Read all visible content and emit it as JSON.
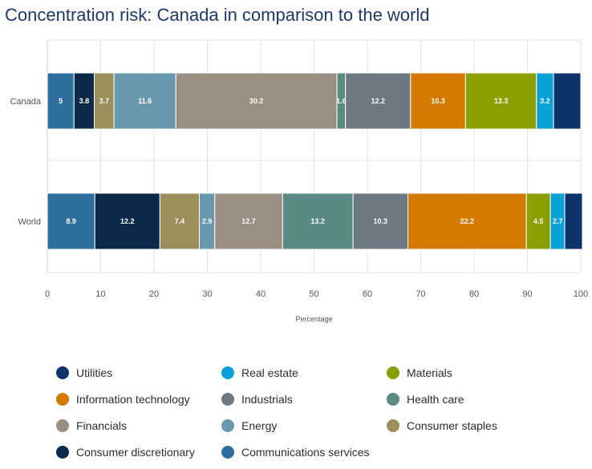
{
  "title": "Concentration risk: Canada in comparison to the world",
  "chart_data": {
    "type": "bar",
    "orientation": "horizontal",
    "stacked": true,
    "title": "Concentration risk: Canada in comparison to the world",
    "xlabel": "Percentage",
    "ylabel": "",
    "xlim": [
      0,
      100
    ],
    "xticks": [
      "0",
      "10",
      "20",
      "30",
      "40",
      "50",
      "60",
      "70",
      "80",
      "90",
      "100"
    ],
    "grid": true,
    "legend_position": "bottom",
    "categories": [
      "Canada",
      "World"
    ],
    "series": [
      {
        "name": "Communications services",
        "color": "#2e6e9e",
        "values": [
          5,
          8.9
        ],
        "labels": [
          "5",
          "8.9"
        ]
      },
      {
        "name": "Consumer discretionary",
        "color": "#0b2a4a",
        "values": [
          3.8,
          12.2
        ],
        "labels": [
          "3.8",
          "12.2"
        ]
      },
      {
        "name": "Consumer staples",
        "color": "#9b8f5d",
        "values": [
          3.7,
          7.4
        ],
        "labels": [
          "3.7",
          "7.4"
        ]
      },
      {
        "name": "Energy",
        "color": "#6898ad",
        "values": [
          11.6,
          2.9
        ],
        "labels": [
          "11.6",
          "2.9"
        ]
      },
      {
        "name": "Financials",
        "color": "#9a8f82",
        "values": [
          30.2,
          12.7
        ],
        "labels": [
          "30.2",
          "12.7"
        ]
      },
      {
        "name": "Health care",
        "color": "#5a8a84",
        "values": [
          1.6,
          13.2
        ],
        "labels": [
          "1.6",
          "13.2"
        ]
      },
      {
        "name": "Industrials",
        "color": "#6e7883",
        "values": [
          12.2,
          10.3
        ],
        "labels": [
          "12.2",
          "10.3"
        ]
      },
      {
        "name": "Information technology",
        "color": "#d47a00",
        "values": [
          10.3,
          22.2
        ],
        "labels": [
          "10.3",
          "22.2"
        ]
      },
      {
        "name": "Materials",
        "color": "#8a9f00",
        "values": [
          13.3,
          4.5
        ],
        "labels": [
          "13.3",
          "4.5"
        ]
      },
      {
        "name": "Real estate",
        "color": "#0aa0d8",
        "values": [
          3.2,
          2.7
        ],
        "labels": [
          "3.2",
          "2.7"
        ]
      },
      {
        "name": "Utilities",
        "color": "#0d3468",
        "values": [
          5.1,
          3.3
        ],
        "labels": [
          "",
          ""
        ]
      }
    ]
  },
  "legend": [
    {
      "label": "Utilities",
      "color": "#0d3468"
    },
    {
      "label": "Real estate",
      "color": "#0aa0d8"
    },
    {
      "label": "Materials",
      "color": "#8a9f00"
    },
    {
      "label": "Information technology",
      "color": "#d47a00"
    },
    {
      "label": "Industrials",
      "color": "#6e7883"
    },
    {
      "label": "Health care",
      "color": "#5a8a84"
    },
    {
      "label": "Financials",
      "color": "#9a8f82"
    },
    {
      "label": "Energy",
      "color": "#6898ad"
    },
    {
      "label": "Consumer staples",
      "color": "#9b8f5d"
    },
    {
      "label": "Consumer discretionary",
      "color": "#0b2a4a"
    },
    {
      "label": "Communications services",
      "color": "#2e6e9e"
    }
  ]
}
